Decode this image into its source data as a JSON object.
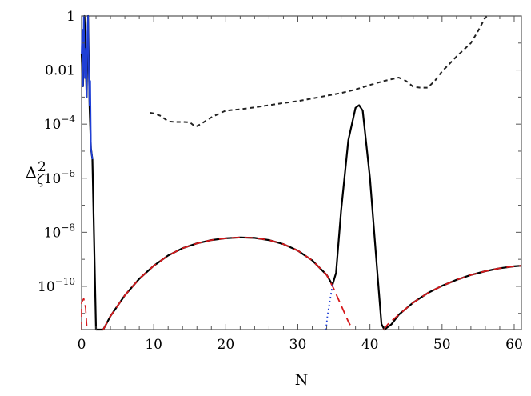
{
  "chart_data": {
    "type": "line",
    "title": "",
    "xlabel": "N",
    "ylabel": "Δ_ζ^2",
    "xlim": [
      0,
      61
    ],
    "ylim_log10": [
      -11.6,
      0
    ],
    "y_scale": "log",
    "x_ticks": [
      0,
      10,
      20,
      30,
      40,
      50,
      60
    ],
    "x_tick_labels": [
      "0",
      "10",
      "20",
      "30",
      "40",
      "50",
      "60"
    ],
    "y_ticks_log10": [
      0,
      -2,
      -4,
      -6,
      -8,
      -10
    ],
    "y_tick_labels": [
      "1",
      "0.01",
      "10^-4",
      "10^-6",
      "10^-8",
      "10^-10"
    ],
    "grid": false,
    "series": [
      {
        "color": "#000000",
        "style": "solid",
        "width": 2.2,
        "points": [
          [
            0,
            -1.4
          ],
          [
            0.2,
            -2.6
          ],
          [
            0.4,
            0
          ],
          [
            0.7,
            -3.0
          ],
          [
            0.9,
            0
          ],
          [
            1.1,
            -3.3
          ],
          [
            1.3,
            -4.9
          ],
          [
            1.5,
            -5.3
          ],
          [
            2.0,
            -11.6
          ],
          [
            2.8,
            -11.6
          ],
          [
            3.0,
            -11.6
          ],
          [
            3.5,
            -11.35
          ],
          [
            4,
            -11.1
          ],
          [
            6,
            -10.33
          ],
          [
            8,
            -9.72
          ],
          [
            10,
            -9.24
          ],
          [
            12,
            -8.86
          ],
          [
            14,
            -8.59
          ],
          [
            16,
            -8.41
          ],
          [
            18,
            -8.29
          ],
          [
            20,
            -8.22
          ],
          [
            22,
            -8.19
          ],
          [
            24,
            -8.21
          ],
          [
            26,
            -8.29
          ],
          [
            28,
            -8.44
          ],
          [
            30,
            -8.68
          ],
          [
            32,
            -9.04
          ],
          [
            34,
            -9.58
          ],
          [
            34.8,
            -9.95
          ],
          [
            35.3,
            -9.5
          ],
          [
            36,
            -7.2
          ],
          [
            37,
            -4.6
          ],
          [
            38,
            -3.4
          ],
          [
            38.5,
            -3.3
          ],
          [
            39,
            -3.5
          ],
          [
            40,
            -6.0
          ],
          [
            41,
            -9.4
          ],
          [
            41.6,
            -11.4
          ],
          [
            42,
            -11.6
          ],
          [
            43,
            -11.4
          ],
          [
            44,
            -11.05
          ],
          [
            46,
            -10.6
          ],
          [
            48,
            -10.25
          ],
          [
            50,
            -9.98
          ],
          [
            52,
            -9.76
          ],
          [
            54,
            -9.58
          ],
          [
            56,
            -9.44
          ],
          [
            58,
            -9.33
          ],
          [
            60,
            -9.26
          ],
          [
            61,
            -9.24
          ]
        ]
      },
      {
        "color": "#d7191c",
        "style": "dashed",
        "width": 1.8,
        "points": [
          [
            3.0,
            -11.6
          ],
          [
            3.5,
            -11.35
          ],
          [
            4,
            -11.1
          ],
          [
            6,
            -10.33
          ],
          [
            8,
            -9.72
          ],
          [
            10,
            -9.24
          ],
          [
            12,
            -8.86
          ],
          [
            14,
            -8.59
          ],
          [
            16,
            -8.41
          ],
          [
            18,
            -8.29
          ],
          [
            20,
            -8.22
          ],
          [
            22,
            -8.19
          ],
          [
            24,
            -8.21
          ],
          [
            26,
            -8.29
          ],
          [
            28,
            -8.44
          ],
          [
            30,
            -8.68
          ],
          [
            32,
            -9.04
          ],
          [
            34,
            -9.58
          ],
          [
            35,
            -10.1
          ],
          [
            36,
            -10.7
          ],
          [
            37,
            -11.3
          ],
          [
            37.6,
            -11.6
          ]
        ]
      },
      {
        "color": "#d7191c",
        "style": "dashed",
        "width": 1.8,
        "points": [
          [
            41.9,
            -11.6
          ],
          [
            42.5,
            -11.4
          ],
          [
            44,
            -11.05
          ],
          [
            46,
            -10.6
          ],
          [
            48,
            -10.25
          ],
          [
            50,
            -9.98
          ],
          [
            52,
            -9.76
          ],
          [
            54,
            -9.58
          ],
          [
            56,
            -9.44
          ],
          [
            58,
            -9.33
          ],
          [
            60,
            -9.26
          ],
          [
            61,
            -9.24
          ]
        ]
      },
      {
        "color": "#d7191c",
        "style": "dashed",
        "width": 1.6,
        "points": [
          [
            0.0,
            -11.6
          ],
          [
            0.0,
            -10.6
          ],
          [
            0.3,
            -10.45
          ],
          [
            0.55,
            -10.8
          ],
          [
            0.75,
            -11.6
          ]
        ]
      },
      {
        "color": "#1f3fd6",
        "style": "dotted",
        "width": 1.8,
        "points": [
          [
            34.8,
            -9.95
          ],
          [
            34.4,
            -10.6
          ],
          [
            34.1,
            -11.1
          ],
          [
            33.9,
            -11.6
          ]
        ]
      },
      {
        "color": "#1f3fd6",
        "style": "solid",
        "width": 1.8,
        "points": [
          [
            0,
            -1.4
          ],
          [
            0.1,
            -0.5
          ],
          [
            0.2,
            -2.6
          ],
          [
            0.3,
            0
          ],
          [
            0.45,
            -2.3
          ],
          [
            0.6,
            -1.2
          ],
          [
            0.7,
            -3.0
          ],
          [
            0.8,
            -0.6
          ],
          [
            0.9,
            0
          ],
          [
            1.0,
            -2.0
          ],
          [
            1.1,
            -3.3
          ],
          [
            1.2,
            -2.4
          ],
          [
            1.3,
            -4.9
          ],
          [
            1.5,
            -5.3
          ]
        ]
      },
      {
        "color": "#222222",
        "style": "short-dashed",
        "width": 2.0,
        "points": [
          [
            9.5,
            -3.58
          ],
          [
            10,
            -3.6
          ],
          [
            11,
            -3.7
          ],
          [
            12,
            -3.9
          ],
          [
            13,
            -3.92
          ],
          [
            14,
            -3.92
          ],
          [
            15,
            -3.93
          ],
          [
            15.8,
            -4.1
          ],
          [
            16.5,
            -4.0
          ],
          [
            18,
            -3.75
          ],
          [
            19,
            -3.62
          ],
          [
            20,
            -3.5
          ],
          [
            22,
            -3.45
          ],
          [
            24,
            -3.38
          ],
          [
            26,
            -3.3
          ],
          [
            28,
            -3.22
          ],
          [
            30,
            -3.15
          ],
          [
            32,
            -3.05
          ],
          [
            34,
            -2.95
          ],
          [
            36,
            -2.85
          ],
          [
            38,
            -2.72
          ],
          [
            40,
            -2.55
          ],
          [
            42,
            -2.4
          ],
          [
            44,
            -2.28
          ],
          [
            45,
            -2.4
          ],
          [
            46,
            -2.62
          ],
          [
            47,
            -2.65
          ],
          [
            48,
            -2.65
          ],
          [
            49,
            -2.4
          ],
          [
            50,
            -2.05
          ],
          [
            52,
            -1.5
          ],
          [
            54,
            -1.0
          ],
          [
            55,
            -0.55
          ],
          [
            56,
            -0.05
          ],
          [
            56.3,
            0
          ]
        ]
      }
    ]
  }
}
